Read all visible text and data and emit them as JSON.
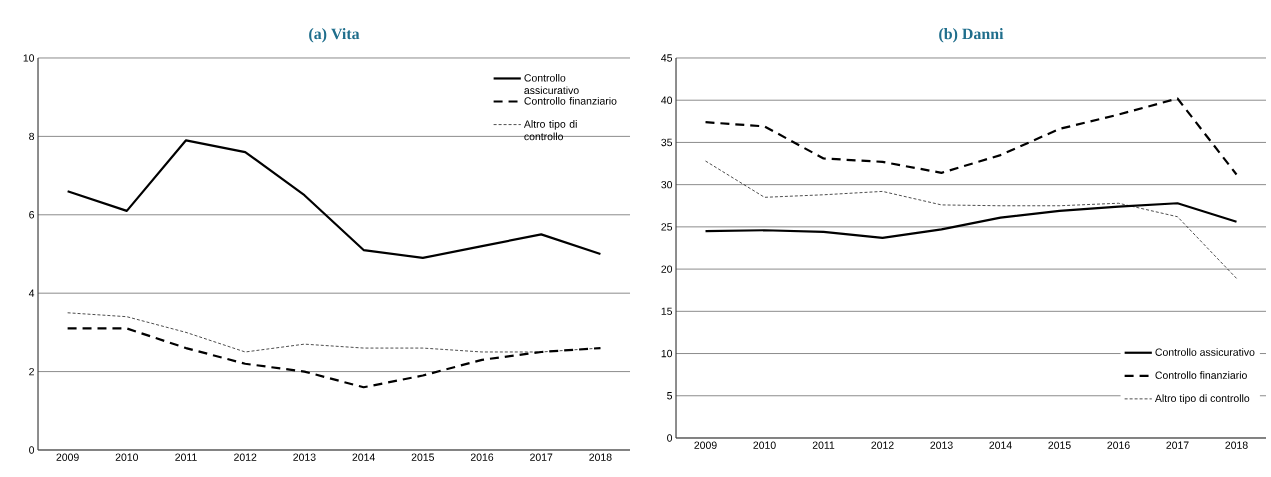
{
  "chart_data": [
    {
      "type": "line",
      "title": "(a) Vita",
      "categories": [
        "2009",
        "2010",
        "2011",
        "2012",
        "2013",
        "2014",
        "2015",
        "2016",
        "2017",
        "2018"
      ],
      "ylim": [
        0,
        10
      ],
      "yticks": [
        0,
        2,
        4,
        6,
        8,
        10
      ],
      "grid": "y",
      "legend": "top right",
      "series": [
        {
          "name": "Controllo assicurativo",
          "color": "#000000",
          "line_style": "solid",
          "values": [
            6.6,
            6.1,
            7.9,
            7.6,
            6.5,
            5.1,
            4.9,
            5.2,
            5.5,
            5.0
          ]
        },
        {
          "name": "Controllo finanziario",
          "color": "#000000",
          "line_style": "dashed",
          "values": [
            3.1,
            3.1,
            2.6,
            2.2,
            2.0,
            1.6,
            1.9,
            2.3,
            2.5,
            2.6
          ]
        },
        {
          "name": "Altro tipo di controllo",
          "color": "#000000",
          "line_style": "dotted",
          "values": [
            3.5,
            3.4,
            3.0,
            2.5,
            2.7,
            2.6,
            2.6,
            2.5,
            2.5,
            2.6
          ]
        }
      ]
    },
    {
      "type": "line",
      "title": "(b) Danni",
      "categories": [
        "2009",
        "2010",
        "2011",
        "2012",
        "2013",
        "2014",
        "2015",
        "2016",
        "2017",
        "2018"
      ],
      "ylim": [
        0,
        45
      ],
      "yticks": [
        0,
        5,
        10,
        15,
        20,
        25,
        30,
        35,
        40,
        45
      ],
      "grid": "y",
      "legend": "bottom right",
      "series": [
        {
          "name": "Controllo assicurativo",
          "color": "#000000",
          "line_style": "solid",
          "values": [
            24.5,
            24.6,
            24.4,
            23.7,
            24.7,
            26.1,
            26.9,
            27.4,
            27.8,
            25.6
          ]
        },
        {
          "name": "Controllo finanziario",
          "color": "#000000",
          "line_style": "dashed",
          "values": [
            37.4,
            36.9,
            33.1,
            32.7,
            31.4,
            33.5,
            36.6,
            38.3,
            40.2,
            31.2
          ]
        },
        {
          "name": "Altro tipo di controllo",
          "color": "#000000",
          "line_style": "dotted",
          "values": [
            32.8,
            28.5,
            28.8,
            29.2,
            27.6,
            27.5,
            27.5,
            27.8,
            26.2,
            18.9
          ]
        }
      ]
    }
  ]
}
